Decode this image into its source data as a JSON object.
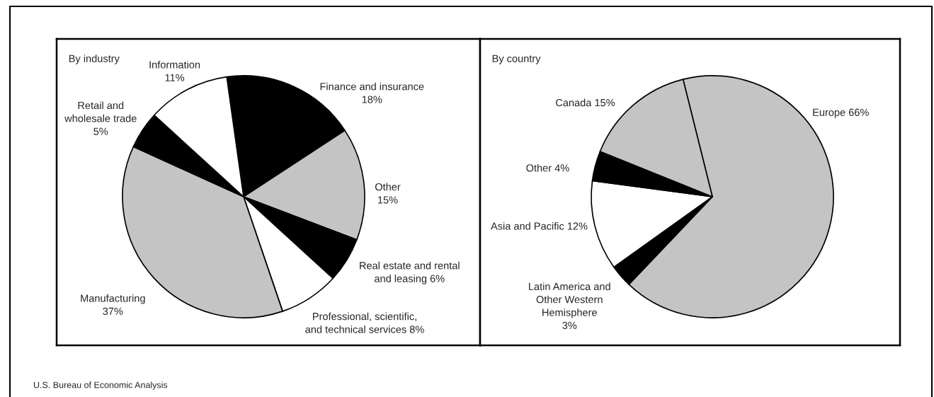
{
  "chart_data": [
    {
      "type": "pie",
      "title": "By industry",
      "categories": [
        "Finance and insurance",
        "Other",
        "Real estate and rental\nand leasing",
        "Professional, scientific,\nand technical services",
        "Manufacturing",
        "Retail and\nwholesale trade",
        "Information"
      ],
      "values": [
        18,
        15,
        6,
        8,
        37,
        5,
        11
      ],
      "colors": [
        "#000000",
        "#c4c4c4",
        "#000000",
        "#ffffff",
        "#c4c4c4",
        "#000000",
        "#ffffff"
      ],
      "value_labels": [
        "18%",
        "15%",
        "6%",
        "8%",
        "37%",
        "5%",
        "11%"
      ],
      "annotations": [
        "U.S. Bureau of Economic Analysis"
      ]
    },
    {
      "type": "pie",
      "title": "By country",
      "categories": [
        "Europe",
        "Latin America and\nOther Western\nHemisphere",
        "Asia and Pacific",
        "Other",
        "Canada"
      ],
      "values": [
        66,
        3,
        12,
        4,
        15
      ],
      "colors": [
        "#c4c4c4",
        "#000000",
        "#ffffff",
        "#000000",
        "#c4c4c4"
      ],
      "value_labels": [
        "66%",
        "3%",
        "12%",
        "4%",
        "15%"
      ]
    }
  ]
}
